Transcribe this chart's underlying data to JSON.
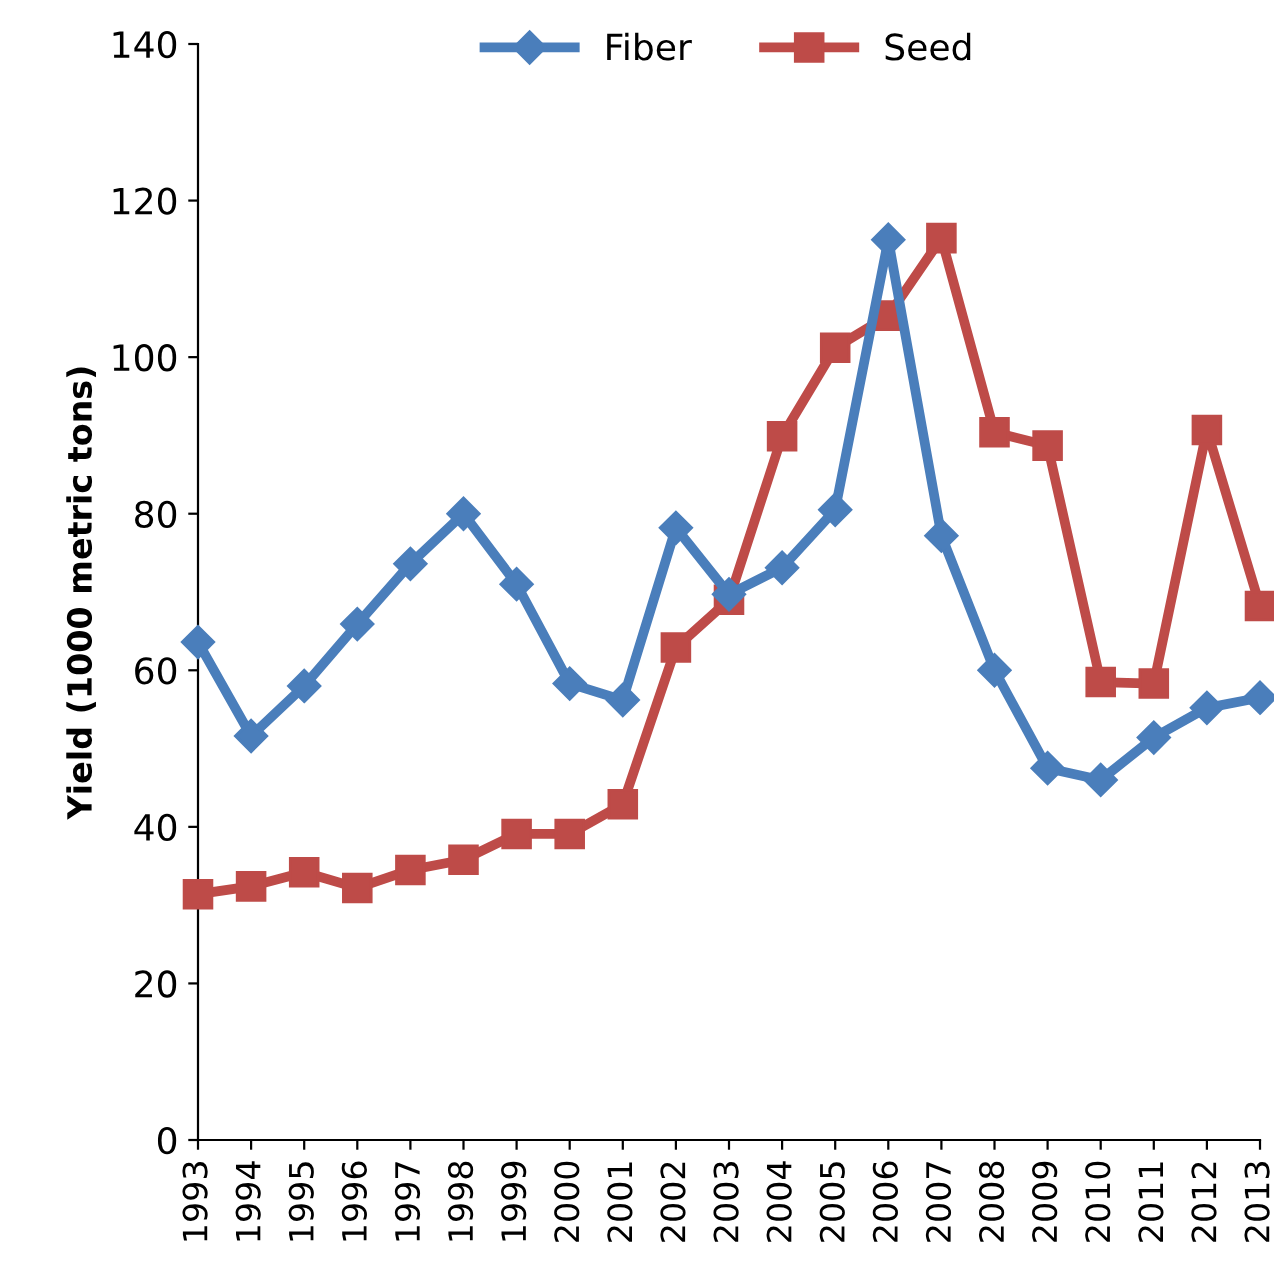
{
  "chart_data": {
    "type": "line",
    "ylabel": "Yield (1000 metric tons)",
    "categories": [
      "1993",
      "1994",
      "1995",
      "1996",
      "1997",
      "1998",
      "1999",
      "2000",
      "2001",
      "2002",
      "2003",
      "2004",
      "2005",
      "2006",
      "2007",
      "2008",
      "2009",
      "2010",
      "2011",
      "2012",
      "2013"
    ],
    "series": [
      {
        "name": "Fiber",
        "color": "#4a7ebb",
        "marker": "diamond",
        "values": [
          63.6,
          51.6,
          58.0,
          65.9,
          73.6,
          80.0,
          71.0,
          58.3,
          56.2,
          78.2,
          69.7,
          73.1,
          80.5,
          115,
          77.2,
          60.0,
          47.5,
          46.0,
          51.4,
          55.2,
          56.5
        ]
      },
      {
        "name": "Seed",
        "color": "#be4b48",
        "marker": "square",
        "values": [
          31.4,
          32.4,
          34.2,
          32.2,
          34.5,
          35.8,
          39.1,
          39.1,
          42.9,
          62.9,
          69.0,
          89.9,
          101.2,
          105.3,
          115.2,
          90.4,
          88.7,
          58.5,
          58.3,
          90.7,
          68.2
        ]
      }
    ],
    "ylim": [
      0,
      140
    ],
    "yticks": [
      0,
      20,
      40,
      60,
      80,
      100,
      120,
      140
    ],
    "grid": false,
    "legend": "top",
    "line_style": "solid"
  }
}
